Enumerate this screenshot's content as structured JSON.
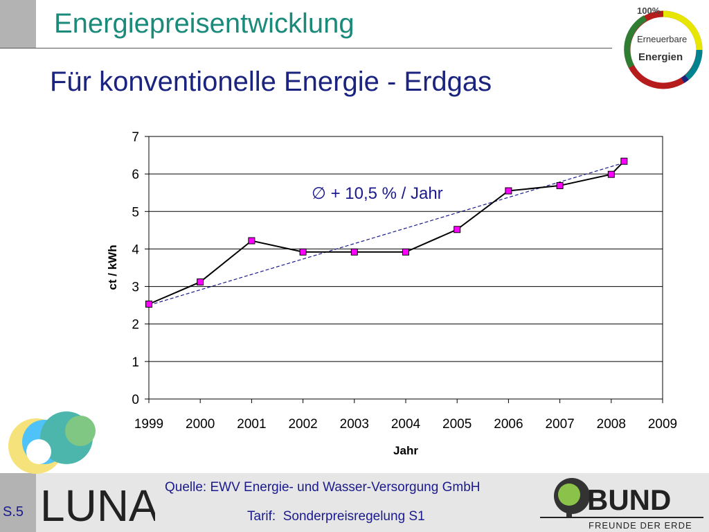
{
  "header": {
    "title": "Energiepreisentwicklung",
    "subtitle": "Für konventionelle Energie - Erdgas"
  },
  "logos": {
    "ee_top": "100%",
    "ee_line1": "Erneuerbare",
    "ee_line2": "Energien",
    "luna": "LUNA",
    "bund": "BUND",
    "bund_tagline": "FREUNDE DER ERDE"
  },
  "footer": {
    "source": "Quelle: EWV Energie- und Wasser-Versorgung GmbH",
    "tarif": "Tarif:  Sonderpreisregelung S1",
    "page": "S.5"
  },
  "chart_data": {
    "type": "line",
    "title": "",
    "xlabel": "Jahr",
    "ylabel": "ct / kWh",
    "xlim": [
      1999,
      2009
    ],
    "ylim": [
      0,
      7
    ],
    "x_ticks": [
      1999,
      2000,
      2001,
      2002,
      2003,
      2004,
      2005,
      2006,
      2007,
      2008,
      2009
    ],
    "y_ticks": [
      0,
      1,
      2,
      3,
      4,
      5,
      6,
      7
    ],
    "grid": "horizontal",
    "annotation": "∅ + 10,5 % / Jahr",
    "series": [
      {
        "x": [
          1999,
          2000,
          2001,
          2002,
          2003,
          2004,
          2005,
          2006,
          2007,
          2008,
          2008.25
        ],
        "y": [
          2.53,
          3.12,
          4.22,
          3.92,
          3.92,
          3.92,
          4.52,
          5.55,
          5.69,
          5.99,
          6.34
        ],
        "color": "#000000",
        "marker_color": "#ff00ff"
      }
    ],
    "trendline": {
      "x": [
        1999,
        2008.25
      ],
      "y": [
        2.5,
        6.3
      ],
      "color": "#1a1a8c",
      "style": "dashed"
    }
  }
}
